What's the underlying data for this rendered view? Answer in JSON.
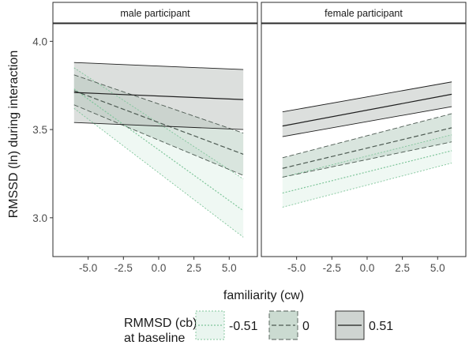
{
  "chart_data": {
    "type": "line",
    "panels": [
      {
        "title": "male participant",
        "series": [
          {
            "name": "-0.51",
            "x": [
              -6,
              6
            ],
            "y": [
              3.73,
              3.04
            ],
            "lower": [
              3.62,
              2.89
            ],
            "upper": [
              3.85,
              3.22
            ],
            "color": "#7fc59a",
            "dash": "2,2",
            "fill": "#e2f2e9"
          },
          {
            "name": "0",
            "x": [
              -6,
              6
            ],
            "y": [
              3.72,
              3.36
            ],
            "lower": [
              3.64,
              3.24
            ],
            "upper": [
              3.81,
              3.48
            ],
            "color": "#4d5a52",
            "dash": "6,3",
            "fill": "#b9cfc2"
          },
          {
            "name": "0.51",
            "x": [
              -6,
              6
            ],
            "y": [
              3.71,
              3.67
            ],
            "lower": [
              3.54,
              3.5
            ],
            "upper": [
              3.88,
              3.84
            ],
            "color": "#1e1e1e",
            "dash": "",
            "fill": "#bfc5c1"
          }
        ]
      },
      {
        "title": "female participant",
        "series": [
          {
            "name": "-0.51",
            "x": [
              -6,
              6
            ],
            "y": [
              3.14,
              3.38
            ],
            "lower": [
              3.06,
              3.31
            ],
            "upper": [
              3.23,
              3.47
            ],
            "color": "#7fc59a",
            "dash": "2,2",
            "fill": "#e2f2e9"
          },
          {
            "name": "0",
            "x": [
              -6,
              6
            ],
            "y": [
              3.28,
              3.51
            ],
            "lower": [
              3.23,
              3.43
            ],
            "upper": [
              3.34,
              3.59
            ],
            "color": "#4d5a52",
            "dash": "6,3",
            "fill": "#b9cfc2"
          },
          {
            "name": "0.51",
            "x": [
              -6,
              6
            ],
            "y": [
              3.52,
              3.7
            ],
            "lower": [
              3.46,
              3.63
            ],
            "upper": [
              3.6,
              3.77
            ],
            "color": "#1e1e1e",
            "dash": "",
            "fill": "#bfc5c1"
          }
        ]
      }
    ],
    "xlabel": "familiarity (cw)",
    "ylabel": "RMSSD (ln) during interaction",
    "xticks": [
      "-5.0",
      "-2.5",
      "0.0",
      "2.5",
      "5.0"
    ],
    "xtick_values": [
      -5,
      -2.5,
      0,
      2.5,
      5
    ],
    "yticks": [
      "3.0",
      "3.5",
      "4.0"
    ],
    "ytick_values": [
      3.0,
      3.5,
      4.0
    ],
    "xlim": [
      -7.5,
      7.0
    ],
    "ylim": [
      2.78,
      4.1
    ],
    "legend": {
      "title_lines": [
        "RMMSD (cb)",
        "at baseline"
      ],
      "position": "bottom",
      "entries": [
        "-0.51",
        "0",
        "0.51"
      ]
    },
    "grid": false
  }
}
